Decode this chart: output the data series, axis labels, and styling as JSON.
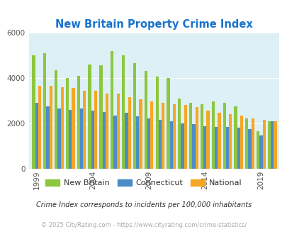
{
  "title": "New Britain Property Crime Index",
  "title_color": "#1874CD",
  "years": [
    1999,
    2000,
    2001,
    2002,
    2003,
    2004,
    2005,
    2006,
    2007,
    2008,
    2009,
    2010,
    2011,
    2012,
    2013,
    2014,
    2015,
    2016,
    2017,
    2018,
    2019,
    2020
  ],
  "new_britain": [
    5000,
    5100,
    4350,
    4000,
    4100,
    4600,
    4550,
    5200,
    5000,
    4650,
    4300,
    4050,
    4000,
    3100,
    2900,
    2850,
    2950,
    2900,
    2750,
    2200,
    1650,
    2100
  ],
  "connecticut": [
    2900,
    2750,
    2650,
    2600,
    2650,
    2550,
    2500,
    2350,
    2450,
    2300,
    2200,
    2150,
    2100,
    2000,
    1950,
    1870,
    1850,
    1850,
    1800,
    1750,
    1450,
    2100
  ],
  "national": [
    3650,
    3650,
    3600,
    3550,
    3450,
    3450,
    3300,
    3300,
    3150,
    3050,
    2950,
    2900,
    2850,
    2800,
    2700,
    2550,
    2450,
    2400,
    2350,
    2200,
    2150,
    2100
  ],
  "colors": {
    "new_britain": "#8DC63F",
    "connecticut": "#4C8DC8",
    "national": "#F5A623"
  },
  "bg_color": "#DCF0F5",
  "ylim": [
    0,
    6000
  ],
  "yticks": [
    0,
    2000,
    4000,
    6000
  ],
  "footnote": "Crime Index corresponds to incidents per 100,000 inhabitants",
  "copyright": "© 2025 CityRating.com - https://www.cityrating.com/crime-statistics/",
  "legend_labels": [
    "New Britain",
    "Connecticut",
    "National"
  ],
  "bar_width": 0.27,
  "xtick_years": [
    1999,
    2004,
    2009,
    2014,
    2019
  ]
}
